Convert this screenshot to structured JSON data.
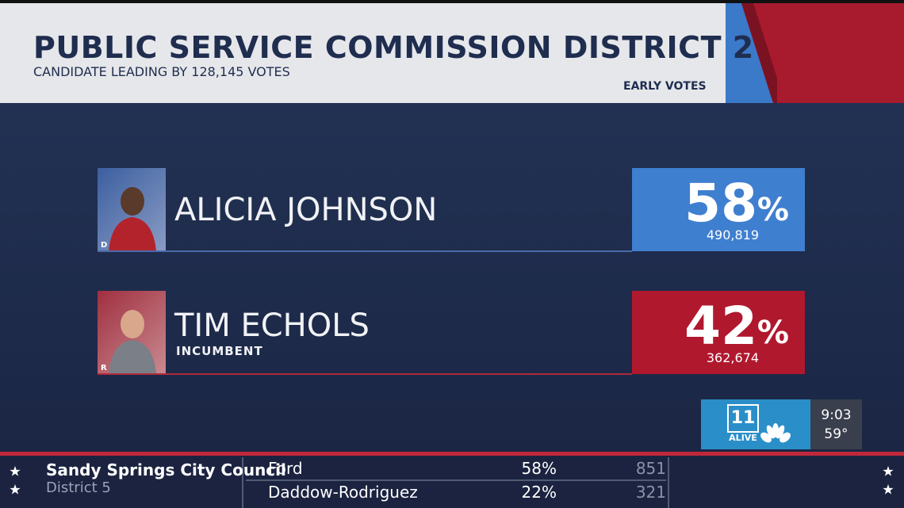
{
  "header": {
    "title": "PUBLIC SERVICE COMMISSION DISTRICT 2",
    "subtitle": "CANDIDATE LEADING BY 128,145 VOTES",
    "tag": "EARLY VOTES"
  },
  "candidates": [
    {
      "name": "ALICIA JOHNSON",
      "party": "D",
      "percent": "58",
      "percent_sign": "%",
      "votes": "490,819"
    },
    {
      "name": "TIM ECHOLS",
      "note": "INCUMBENT",
      "party": "R",
      "percent": "42",
      "percent_sign": "%",
      "votes": "362,674"
    }
  ],
  "station": {
    "logo_number": "11",
    "logo_text": "ALIVE",
    "time": "9:03",
    "temperature": "59°"
  },
  "ticker": {
    "race": "Sandy Springs City Council",
    "district": "District 5",
    "rows": [
      [
        "Ford",
        "58%",
        "851"
      ],
      [
        "Daddow-Rodriguez",
        "22%",
        "321"
      ]
    ]
  }
}
